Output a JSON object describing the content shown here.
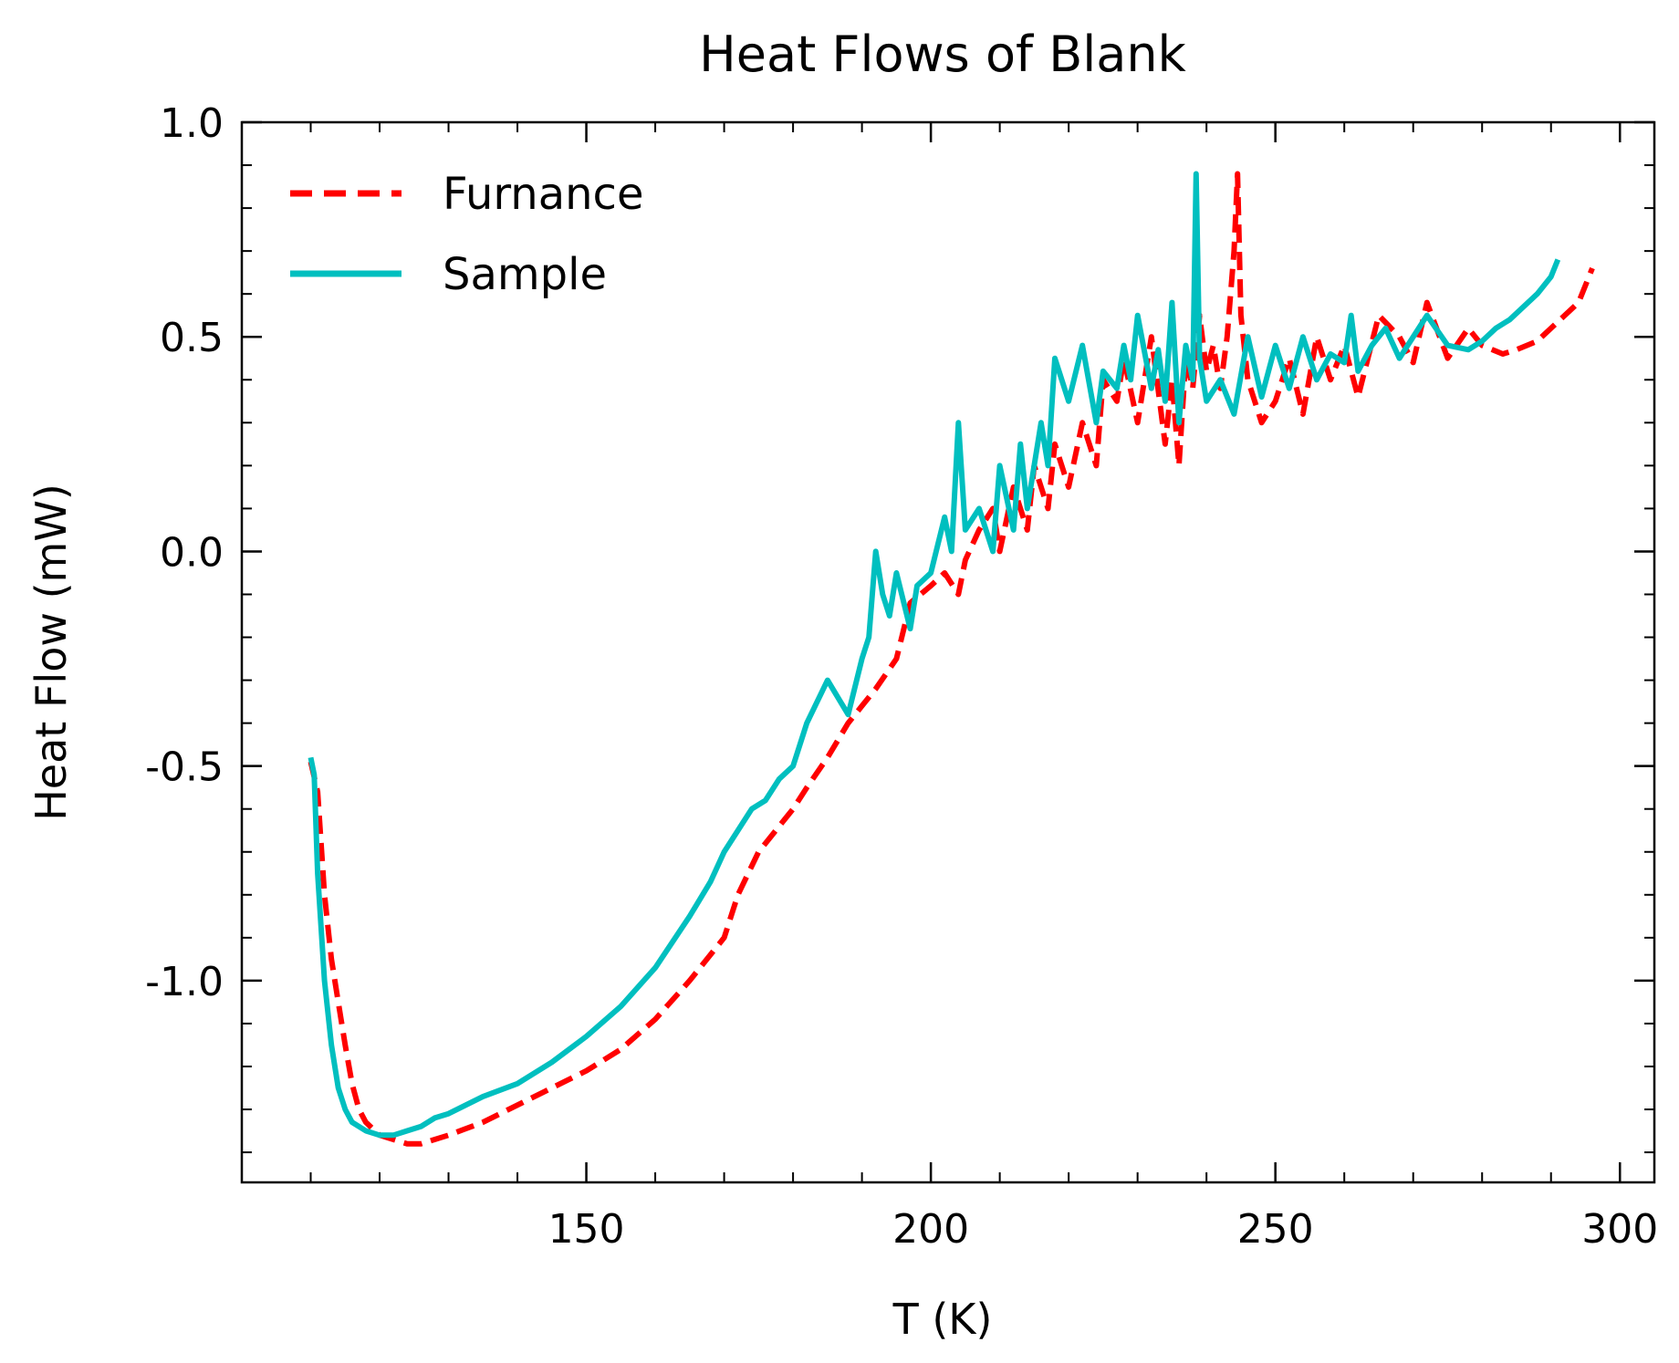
{
  "chart_data": {
    "type": "line",
    "title": "Heat Flows of Blank",
    "xlabel": "T (K)",
    "ylabel": "Heat Flow (mW)",
    "xlim": [
      100,
      305
    ],
    "ylim": [
      -1.47,
      1.0
    ],
    "xticks": [
      150,
      200,
      250,
      300
    ],
    "xtick_labels": [
      "150",
      "200",
      "250",
      "300"
    ],
    "yticks": [
      -1.0,
      -0.5,
      0.0,
      0.5,
      1.0
    ],
    "ytick_labels": [
      "-1.0",
      "-0.5",
      "0.0",
      "0.5",
      "1.0"
    ],
    "grid": false,
    "legend": "top-left",
    "series": [
      {
        "name": "Furnance",
        "color": "#ff0000",
        "style": "dashed",
        "x": [
          110,
          111,
          112,
          113,
          114,
          115,
          116,
          117,
          118,
          120,
          122,
          124,
          126,
          128,
          130,
          135,
          140,
          145,
          150,
          155,
          160,
          165,
          170,
          172,
          175,
          178,
          180,
          182,
          185,
          188,
          190,
          192,
          195,
          197,
          200,
          202,
          204,
          205,
          207,
          209,
          210,
          212,
          214,
          215,
          217,
          218,
          220,
          222,
          224,
          225,
          227,
          228,
          230,
          232,
          234,
          235,
          236,
          237,
          238,
          239,
          240,
          241,
          242,
          243,
          244,
          244.5,
          245,
          246,
          248,
          250,
          252,
          254,
          256,
          258,
          260,
          262,
          265,
          268,
          270,
          272,
          275,
          278,
          280,
          283,
          285,
          288,
          290,
          292,
          294,
          295,
          296
        ],
        "y": [
          -0.49,
          -0.56,
          -0.8,
          -0.95,
          -1.05,
          -1.15,
          -1.24,
          -1.3,
          -1.33,
          -1.36,
          -1.37,
          -1.38,
          -1.38,
          -1.37,
          -1.36,
          -1.33,
          -1.29,
          -1.25,
          -1.21,
          -1.16,
          -1.09,
          -1.0,
          -0.9,
          -0.8,
          -0.7,
          -0.64,
          -0.6,
          -0.55,
          -0.48,
          -0.4,
          -0.36,
          -0.32,
          -0.25,
          -0.12,
          -0.08,
          -0.05,
          -0.1,
          -0.02,
          0.05,
          0.1,
          0.0,
          0.15,
          0.05,
          0.2,
          0.1,
          0.25,
          0.15,
          0.3,
          0.2,
          0.4,
          0.35,
          0.45,
          0.3,
          0.5,
          0.25,
          0.4,
          0.2,
          0.45,
          0.38,
          0.55,
          0.42,
          0.48,
          0.38,
          0.5,
          0.7,
          0.88,
          0.55,
          0.4,
          0.3,
          0.35,
          0.45,
          0.32,
          0.5,
          0.4,
          0.48,
          0.36,
          0.55,
          0.5,
          0.44,
          0.58,
          0.45,
          0.52,
          0.48,
          0.46,
          0.47,
          0.49,
          0.52,
          0.55,
          0.58,
          0.62,
          0.66
        ]
      },
      {
        "name": "Sample",
        "color": "#00bfbf",
        "style": "solid",
        "x": [
          110,
          110.5,
          111,
          112,
          113,
          114,
          115,
          116,
          118,
          120,
          122,
          124,
          126,
          128,
          130,
          135,
          140,
          145,
          150,
          155,
          160,
          165,
          168,
          170,
          172,
          174,
          176,
          178,
          180,
          182,
          185,
          188,
          190,
          191,
          192,
          193,
          194,
          195,
          197,
          198,
          200,
          202,
          203,
          204,
          205,
          207,
          209,
          210,
          212,
          213,
          214,
          216,
          217,
          218,
          220,
          222,
          224,
          225,
          227,
          228,
          229,
          230,
          232,
          233,
          234,
          235,
          236,
          237,
          238,
          238.5,
          239,
          240,
          242,
          244,
          246,
          248,
          250,
          252,
          254,
          256,
          258,
          260,
          261,
          262,
          264,
          266,
          268,
          270,
          272,
          275,
          278,
          280,
          282,
          284,
          286,
          288,
          290,
          291
        ],
        "y": [
          -0.48,
          -0.52,
          -0.75,
          -1.0,
          -1.15,
          -1.25,
          -1.3,
          -1.33,
          -1.35,
          -1.36,
          -1.36,
          -1.35,
          -1.34,
          -1.32,
          -1.31,
          -1.27,
          -1.24,
          -1.19,
          -1.13,
          -1.06,
          -0.97,
          -0.85,
          -0.77,
          -0.7,
          -0.65,
          -0.6,
          -0.58,
          -0.53,
          -0.5,
          -0.4,
          -0.3,
          -0.38,
          -0.25,
          -0.2,
          0.0,
          -0.1,
          -0.15,
          -0.05,
          -0.18,
          -0.08,
          -0.05,
          0.08,
          0.0,
          0.3,
          0.05,
          0.1,
          0.0,
          0.2,
          0.05,
          0.25,
          0.1,
          0.3,
          0.2,
          0.45,
          0.35,
          0.48,
          0.3,
          0.42,
          0.38,
          0.48,
          0.4,
          0.55,
          0.38,
          0.47,
          0.35,
          0.58,
          0.3,
          0.48,
          0.4,
          0.88,
          0.45,
          0.35,
          0.4,
          0.32,
          0.5,
          0.36,
          0.48,
          0.38,
          0.5,
          0.4,
          0.46,
          0.44,
          0.55,
          0.42,
          0.48,
          0.52,
          0.45,
          0.5,
          0.55,
          0.48,
          0.47,
          0.49,
          0.52,
          0.54,
          0.57,
          0.6,
          0.64,
          0.68
        ]
      }
    ]
  }
}
